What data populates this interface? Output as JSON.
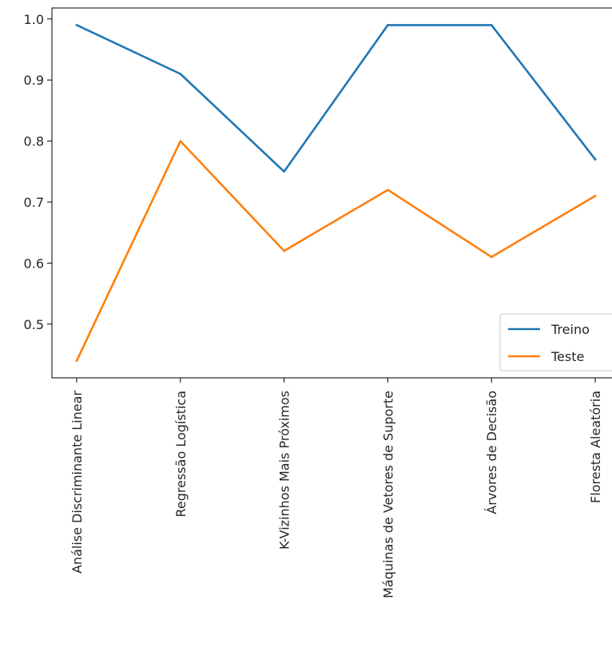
{
  "chart_data": {
    "type": "line",
    "title": "",
    "xlabel": "",
    "ylabel": "",
    "categories": [
      "Análise Discriminante Linear",
      "Regressão Logística",
      "K-Vizinhos Mais Próximos",
      "Máquinas de Vetores de Suporte",
      "Árvores de Decisão",
      "Floresta Aleatória"
    ],
    "series": [
      {
        "name": "Treino",
        "color": "#1f77b4",
        "values": [
          0.99,
          0.91,
          0.75,
          0.99,
          0.99,
          0.77
        ]
      },
      {
        "name": "Teste",
        "color": "#ff7f0e",
        "values": [
          0.44,
          0.8,
          0.62,
          0.72,
          0.61,
          0.71
        ]
      }
    ],
    "ylim": [
      0.412,
      1.018
    ],
    "yticks": [
      0.5,
      0.6,
      0.7,
      0.8,
      0.9,
      1.0
    ],
    "ytick_labels": [
      "0.5",
      "0.6",
      "0.7",
      "0.8",
      "0.9",
      "1.0"
    ],
    "grid": false,
    "legend_position": "lower-right"
  }
}
